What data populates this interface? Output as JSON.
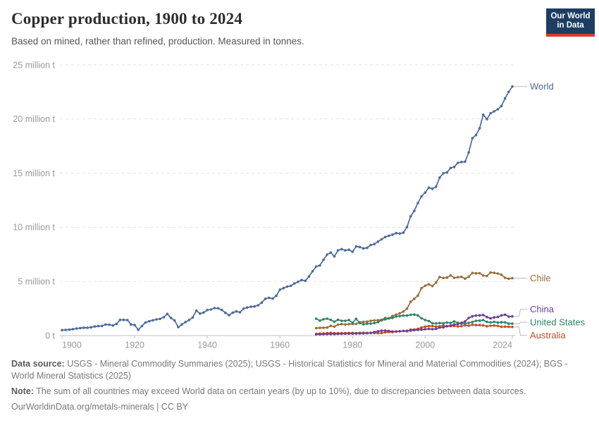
{
  "header": {
    "title": "Copper production, 1900 to 2024",
    "subtitle": "Based on mined, rather than refined, production. Measured in tonnes.",
    "logo": {
      "line1": "Our World",
      "line2": "in Data",
      "bg_color": "#1d3d63",
      "bar_color": "#e0392e",
      "text_color": "#ffffff"
    }
  },
  "chart_data": {
    "type": "line",
    "title": "Copper production, 1900 to 2024",
    "subtitle": "Based on mined, rather than refined, production. Measured in tonnes.",
    "unit": "million tonnes",
    "legend_position": "end-of-line labels, right side",
    "grid": "horizontal dashed",
    "x_axis": {
      "range": [
        1900,
        2024
      ],
      "ticks": [
        1900,
        1920,
        1940,
        1960,
        1980,
        2000,
        2024
      ]
    },
    "y_axis": {
      "range": [
        0,
        25
      ],
      "unit": "million t",
      "ticks": [
        {
          "value": 0,
          "label": "0 t"
        },
        {
          "value": 5,
          "label": "5 million t"
        },
        {
          "value": 10,
          "label": "10 million t"
        },
        {
          "value": 15,
          "label": "15 million t"
        },
        {
          "value": 20,
          "label": "20 million t"
        },
        {
          "value": 25,
          "label": "25 million t"
        }
      ]
    },
    "series": [
      {
        "name": "World",
        "color": "#4c6a9c",
        "start_year": 1900,
        "step": 1,
        "values": [
          0.5,
          0.53,
          0.55,
          0.59,
          0.65,
          0.69,
          0.72,
          0.72,
          0.76,
          0.84,
          0.87,
          0.89,
          1.02,
          1.0,
          0.93,
          1.08,
          1.45,
          1.45,
          1.43,
          1.03,
          0.97,
          0.54,
          0.88,
          1.21,
          1.32,
          1.41,
          1.5,
          1.54,
          1.69,
          2.0,
          1.63,
          1.39,
          0.78,
          1.03,
          1.25,
          1.44,
          1.68,
          2.3,
          2.03,
          2.13,
          2.36,
          2.41,
          2.54,
          2.52,
          2.37,
          2.1,
          1.88,
          2.11,
          2.23,
          2.15,
          2.49,
          2.59,
          2.66,
          2.69,
          2.8,
          3.05,
          3.4,
          3.49,
          3.42,
          3.67,
          4.24,
          4.38,
          4.52,
          4.59,
          4.81,
          4.96,
          5.13,
          5.06,
          5.46,
          5.94,
          6.38,
          6.48,
          7.0,
          7.49,
          7.66,
          7.31,
          7.87,
          7.98,
          7.87,
          7.93,
          7.74,
          8.23,
          8.18,
          8.05,
          8.1,
          8.36,
          8.45,
          8.67,
          8.89,
          9.1,
          9.22,
          9.32,
          9.46,
          9.42,
          9.5,
          10.02,
          11.01,
          11.52,
          12.24,
          12.85,
          13.21,
          13.66,
          13.56,
          13.75,
          14.59,
          14.99,
          15.06,
          15.48,
          15.57,
          15.95,
          16.03,
          16.06,
          16.91,
          18.22,
          18.51,
          19.15,
          20.4,
          19.98,
          20.53,
          20.7,
          20.9,
          21.2,
          21.9,
          22.5,
          23.0
        ]
      },
      {
        "name": "Chile",
        "color": "#996d39",
        "start_year": 1970,
        "step": 1,
        "values": [
          0.69,
          0.71,
          0.72,
          0.74,
          0.9,
          0.83,
          1.01,
          1.06,
          1.03,
          1.06,
          1.07,
          1.08,
          1.24,
          1.26,
          1.29,
          1.36,
          1.4,
          1.42,
          1.45,
          1.63,
          1.59,
          1.81,
          1.93,
          2.06,
          2.22,
          2.49,
          3.12,
          3.39,
          3.69,
          4.38,
          4.6,
          4.74,
          4.58,
          4.9,
          5.41,
          5.32,
          5.36,
          5.56,
          5.33,
          5.39,
          5.42,
          5.26,
          5.43,
          5.78,
          5.75,
          5.76,
          5.55,
          5.5,
          5.83,
          5.79,
          5.73,
          5.62,
          5.33,
          5.25,
          5.3
        ]
      },
      {
        "name": "United States",
        "color": "#2c8465",
        "start_year": 1970,
        "step": 1,
        "values": [
          1.56,
          1.38,
          1.51,
          1.56,
          1.45,
          1.28,
          1.46,
          1.36,
          1.36,
          1.44,
          1.18,
          1.54,
          1.15,
          1.04,
          1.1,
          1.11,
          1.15,
          1.24,
          1.42,
          1.5,
          1.59,
          1.63,
          1.76,
          1.8,
          1.85,
          1.85,
          1.92,
          1.94,
          1.86,
          1.6,
          1.44,
          1.34,
          1.14,
          1.12,
          1.16,
          1.14,
          1.2,
          1.17,
          1.31,
          1.18,
          1.11,
          1.11,
          1.17,
          1.25,
          1.36,
          1.38,
          1.43,
          1.26,
          1.22,
          1.26,
          1.2,
          1.23,
          1.22,
          1.1,
          1.1
        ]
      },
      {
        "name": "Australia",
        "color": "#c14d28",
        "start_year": 1970,
        "step": 1,
        "values": [
          0.16,
          0.18,
          0.19,
          0.22,
          0.25,
          0.22,
          0.22,
          0.22,
          0.22,
          0.24,
          0.24,
          0.23,
          0.25,
          0.26,
          0.24,
          0.26,
          0.25,
          0.23,
          0.24,
          0.3,
          0.33,
          0.32,
          0.38,
          0.4,
          0.42,
          0.4,
          0.55,
          0.56,
          0.61,
          0.74,
          0.83,
          0.87,
          0.88,
          0.83,
          0.85,
          0.93,
          0.86,
          0.87,
          0.89,
          0.85,
          0.87,
          0.96,
          0.91,
          1.0,
          0.97,
          0.97,
          0.95,
          0.86,
          0.91,
          0.93,
          0.89,
          0.81,
          0.83,
          0.81,
          0.8
        ]
      },
      {
        "name": "China",
        "color": "#6d3e91",
        "start_year": 1970,
        "step": 1,
        "values": [
          0.12,
          0.12,
          0.13,
          0.14,
          0.15,
          0.15,
          0.16,
          0.17,
          0.18,
          0.18,
          0.18,
          0.19,
          0.2,
          0.21,
          0.22,
          0.24,
          0.33,
          0.4,
          0.45,
          0.46,
          0.42,
          0.38,
          0.38,
          0.4,
          0.42,
          0.44,
          0.46,
          0.5,
          0.52,
          0.55,
          0.59,
          0.61,
          0.59,
          0.62,
          0.74,
          0.76,
          0.87,
          0.93,
          1.03,
          1.07,
          1.18,
          1.31,
          1.63,
          1.78,
          1.85,
          1.87,
          1.9,
          1.71,
          1.59,
          1.68,
          1.72,
          1.87,
          1.93,
          1.76,
          1.78
        ]
      }
    ]
  },
  "footer": {
    "datasource_label": "Data source:",
    "datasource_text": " USGS - Mineral Commodity Summaries (2025); USGS - Historical Statistics for Mineral and Material Commodities (2024); BGS - World Mineral Statistics (2025)",
    "note_label": "Note:",
    "note_text": " The sum of all countries may exceed World data on certain years (by up to 10%), due to discrepancies between data sources.",
    "license": "OurWorldinData.org/metals-minerals | CC BY"
  },
  "colors": {
    "grid": "#e2e2e2",
    "axis": "#c0c0c0",
    "tick_text": "#999999",
    "connector": "#bbbbbb"
  }
}
